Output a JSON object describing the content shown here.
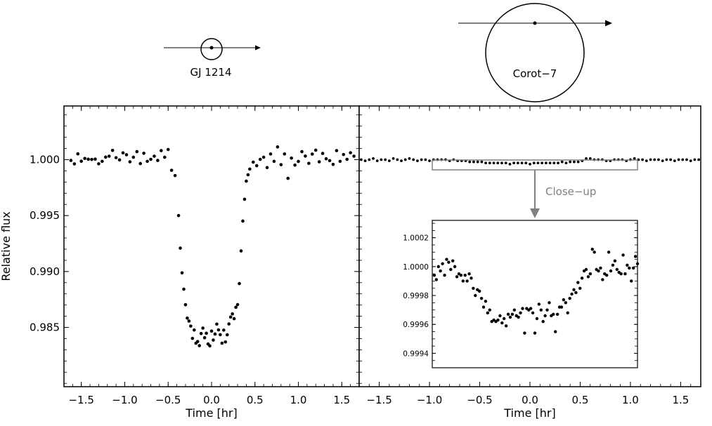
{
  "chart_data": [
    {
      "type": "scatter",
      "title": "GJ 1214",
      "xlabel": "Time [hr]",
      "ylabel": "Relative flux",
      "xlim": [
        -1.7,
        1.7
      ],
      "ylim": [
        0.9797,
        1.0048
      ],
      "xticks": [
        -1.5,
        -1.0,
        -0.5,
        0.0,
        0.5,
        1.0,
        1.5
      ],
      "xtick_labels": [
        "−1.5",
        "−1.0",
        "−0.5",
        "0.0",
        "0.5",
        "1.0",
        "1.5"
      ],
      "yticks": [
        0.985,
        0.99,
        0.995,
        1.0
      ],
      "ytick_labels": [
        "0.985",
        "0.990",
        "0.995",
        "1.000"
      ],
      "grid": false,
      "series": [
        {
          "x": [
            -1.62,
            -1.58,
            -1.54,
            -1.5,
            -1.46,
            -1.42,
            -1.38,
            -1.34,
            -1.3,
            -1.26,
            -1.22,
            -1.18,
            -1.14,
            -1.1,
            -1.06,
            -1.02,
            -0.98,
            -0.94,
            -0.9,
            -0.86,
            -0.82,
            -0.78,
            -0.74,
            -0.7,
            -0.66,
            -0.62,
            -0.58,
            -0.54,
            -0.5,
            -0.46,
            -0.42,
            -0.38,
            -0.36,
            -0.34,
            -0.32,
            -0.3,
            -0.28,
            -0.26,
            -0.24,
            -0.22,
            -0.2,
            -0.18,
            -0.16,
            -0.14,
            -0.12,
            -0.1,
            -0.08,
            -0.06,
            -0.04,
            -0.02,
            0.0,
            0.02,
            0.04,
            0.06,
            0.08,
            0.1,
            0.12,
            0.14,
            0.16,
            0.18,
            0.2,
            0.22,
            0.24,
            0.26,
            0.28,
            0.3,
            0.32,
            0.34,
            0.36,
            0.38,
            0.4,
            0.42,
            0.44,
            0.48,
            0.52,
            0.56,
            0.6,
            0.64,
            0.68,
            0.72,
            0.76,
            0.8,
            0.84,
            0.88,
            0.92,
            0.96,
            1.0,
            1.04,
            1.08,
            1.12,
            1.16,
            1.2,
            1.24,
            1.28,
            1.32,
            1.36,
            1.4,
            1.44,
            1.48,
            1.52,
            1.56,
            1.6,
            1.64
          ],
          "y": [
            0.99993,
            0.99962,
            1.00052,
            0.99986,
            1.00011,
            1.00004,
            1.00002,
            1.00005,
            0.99963,
            0.99985,
            1.00023,
            1.00031,
            1.00083,
            1.00018,
            0.99998,
            1.00061,
            1.00044,
            0.99981,
            1.00022,
            1.00072,
            0.99965,
            1.00057,
            0.99985,
            1.00003,
            1.00031,
            0.99993,
            1.00081,
            1.00022,
            1.00091,
            0.99905,
            0.99858,
            0.995,
            0.99209,
            0.98988,
            0.98842,
            0.98703,
            0.98583,
            0.98557,
            0.98512,
            0.98402,
            0.98477,
            0.98359,
            0.98374,
            0.98337,
            0.98445,
            0.98494,
            0.98408,
            0.98448,
            0.98352,
            0.98335,
            0.98467,
            0.98387,
            0.98441,
            0.9853,
            0.98478,
            0.98435,
            0.98359,
            0.98476,
            0.9837,
            0.98434,
            0.98531,
            0.98593,
            0.98621,
            0.98578,
            0.9868,
            0.98704,
            0.98892,
            0.99184,
            0.99451,
            0.99646,
            0.99808,
            0.99865,
            0.99916,
            0.99978,
            0.99946,
            1.00003,
            1.00022,
            0.99929,
            1.00051,
            0.99985,
            1.00114,
            0.99955,
            1.00051,
            0.99833,
            1.00014,
            0.99951,
            0.99984,
            1.00072,
            1.00032,
            0.99967,
            1.0005,
            1.00085,
            0.99981,
            1.00056,
            1.00008,
            0.99991,
            0.99958,
            1.00081,
            0.99985,
            1.00046,
            1.00003,
            1.00062,
            1.00031
          ]
        }
      ]
    },
    {
      "type": "scatter",
      "title": "Corot−7",
      "xlabel": "Time [hr]",
      "ylabel": "",
      "xlim": [
        -1.7,
        1.7
      ],
      "ylim": [
        0.9797,
        1.0048
      ],
      "xticks": [
        -1.5,
        -1.0,
        -0.5,
        0.0,
        0.5,
        1.0,
        1.5
      ],
      "xtick_labels": [
        "−1.5",
        "−1.0",
        "−0.5",
        "0.0",
        "0.5",
        "1.0",
        "1.5"
      ],
      "grid": false,
      "annotations": [
        {
          "text": "Close−up"
        }
      ],
      "series": [
        {
          "x": [
            -1.68,
            -1.64,
            -1.6,
            -1.56,
            -1.52,
            -1.48,
            -1.44,
            -1.4,
            -1.36,
            -1.32,
            -1.28,
            -1.24,
            -1.2,
            -1.16,
            -1.12,
            -1.08,
            -1.04,
            -1.0,
            -0.96,
            -0.92,
            -0.88,
            -0.84,
            -0.8,
            -0.76,
            -0.72,
            -0.68,
            -0.64,
            -0.6,
            -0.56,
            -0.52,
            -0.48,
            -0.44,
            -0.4,
            -0.36,
            -0.32,
            -0.28,
            -0.24,
            -0.2,
            -0.16,
            -0.12,
            -0.08,
            -0.04,
            0.0,
            0.04,
            0.08,
            0.12,
            0.16,
            0.2,
            0.24,
            0.28,
            0.32,
            0.36,
            0.4,
            0.44,
            0.48,
            0.52,
            0.56,
            0.6,
            0.64,
            0.68,
            0.72,
            0.76,
            0.8,
            0.84,
            0.88,
            0.92,
            0.96,
            1.0,
            1.04,
            1.08,
            1.12,
            1.16,
            1.2,
            1.24,
            1.28,
            1.32,
            1.36,
            1.4,
            1.44,
            1.48,
            1.52,
            1.56,
            1.6,
            1.64,
            1.68
          ],
          "y": [
            1.0,
            0.9999,
            1.0,
            1.0001,
            0.9999,
            1.0,
            1.0,
            0.9999,
            1.0001,
            1.0,
            0.9999,
            1.0,
            1.0001,
            1.0,
            0.9999,
            1.0,
            1.0,
            0.9999,
            1.0,
            1.0,
            1.0,
            1.0,
            0.9999,
            1.0,
            0.9999,
            0.9999,
            0.9999,
            0.9998,
            0.9998,
            0.9998,
            0.9998,
            0.9997,
            0.9997,
            0.9997,
            0.9997,
            0.9997,
            0.9997,
            0.9996,
            0.9997,
            0.9997,
            0.9997,
            0.9997,
            0.9996,
            0.9997,
            0.9997,
            0.9997,
            0.9997,
            0.9997,
            0.9997,
            0.9997,
            0.9998,
            0.9997,
            0.9998,
            0.9998,
            0.9998,
            0.9999,
            1.0001,
            1.0001,
            1.0,
            1.0,
            1.0,
            0.9999,
            0.9999,
            1.0,
            1.0,
            1.0,
            0.9999,
            1.0,
            1.0001,
            1.0,
            1.0,
            0.9999,
            1.0,
            1.0,
            1.0,
            0.9999,
            1.0,
            1.0,
            0.9999,
            1.0,
            1.0,
            1.0,
            0.9999,
            1.0,
            1.0
          ]
        }
      ]
    },
    {
      "type": "scatter",
      "title": "",
      "xlabel": "",
      "ylabel": "",
      "xlim": [
        -1.0,
        1.0
      ],
      "ylim": [
        0.9993,
        1.00032
      ],
      "yticks": [
        0.9994,
        0.9996,
        0.9998,
        1.0,
        1.0002
      ],
      "ytick_labels": [
        "0.9994",
        "0.9996",
        "0.9998",
        "1.0000",
        "1.0002"
      ],
      "grid": false,
      "series": [
        {
          "x": [
            -0.98,
            -0.96,
            -0.94,
            -0.92,
            -0.9,
            -0.88,
            -0.86,
            -0.84,
            -0.82,
            -0.8,
            -0.78,
            -0.76,
            -0.74,
            -0.72,
            -0.7,
            -0.68,
            -0.66,
            -0.64,
            -0.62,
            -0.6,
            -0.58,
            -0.56,
            -0.54,
            -0.52,
            -0.5,
            -0.48,
            -0.46,
            -0.44,
            -0.42,
            -0.4,
            -0.38,
            -0.36,
            -0.34,
            -0.32,
            -0.3,
            -0.28,
            -0.26,
            -0.24,
            -0.22,
            -0.2,
            -0.18,
            -0.16,
            -0.14,
            -0.12,
            -0.1,
            -0.08,
            -0.06,
            -0.04,
            -0.02,
            0.0,
            0.02,
            0.04,
            0.06,
            0.08,
            0.1,
            0.12,
            0.14,
            0.16,
            0.18,
            0.2,
            0.22,
            0.24,
            0.26,
            0.28,
            0.3,
            0.32,
            0.34,
            0.36,
            0.38,
            0.4,
            0.42,
            0.44,
            0.46,
            0.48,
            0.5,
            0.52,
            0.54,
            0.56,
            0.58,
            0.6,
            0.62,
            0.64,
            0.66,
            0.68,
            0.7,
            0.72,
            0.74,
            0.76,
            0.78,
            0.8,
            0.82,
            0.84,
            0.86,
            0.88,
            0.9,
            0.92,
            0.94,
            0.96,
            0.98,
            1.0
          ],
          "y": [
            0.99994,
            0.99991,
            1.0,
            0.99997,
            1.00002,
            0.99994,
            1.00005,
            1.00003,
            0.99998,
            1.00004,
            1.0,
            0.99993,
            0.99995,
            0.99994,
            0.9999,
            0.99994,
            0.9999,
            0.99995,
            0.99992,
            0.99985,
            0.9998,
            0.99984,
            0.99983,
            0.99978,
            0.99972,
            0.99976,
            0.99968,
            0.9997,
            0.99962,
            0.99963,
            0.99962,
            0.99963,
            0.99966,
            0.99961,
            0.99964,
            0.99959,
            0.99967,
            0.99965,
            0.99967,
            0.9997,
            0.99966,
            0.99965,
            0.99968,
            0.99971,
            0.99954,
            0.99971,
            0.9997,
            0.99971,
            0.99968,
            0.99954,
            0.99964,
            0.99974,
            0.9997,
            0.99962,
            0.99966,
            0.9997,
            0.99975,
            0.99966,
            0.99967,
            0.99955,
            0.99967,
            0.99972,
            0.99972,
            0.99977,
            0.99975,
            0.99968,
            0.99978,
            0.99981,
            0.99984,
            0.99982,
            0.99989,
            0.99985,
            0.99992,
            0.99997,
            0.99998,
            0.99993,
            0.99995,
            1.00012,
            1.0001,
            0.99998,
            0.99997,
            0.99999,
            0.99991,
            0.99995,
            0.99994,
            1.0001,
            0.99997,
            1.00001,
            1.00004,
            0.99998,
            0.99996,
            0.99995,
            1.00008,
            0.99995,
            1.00001,
            0.99999,
            0.9999,
            0.99999,
            1.00007,
            1.00002
          ]
        }
      ]
    }
  ]
}
